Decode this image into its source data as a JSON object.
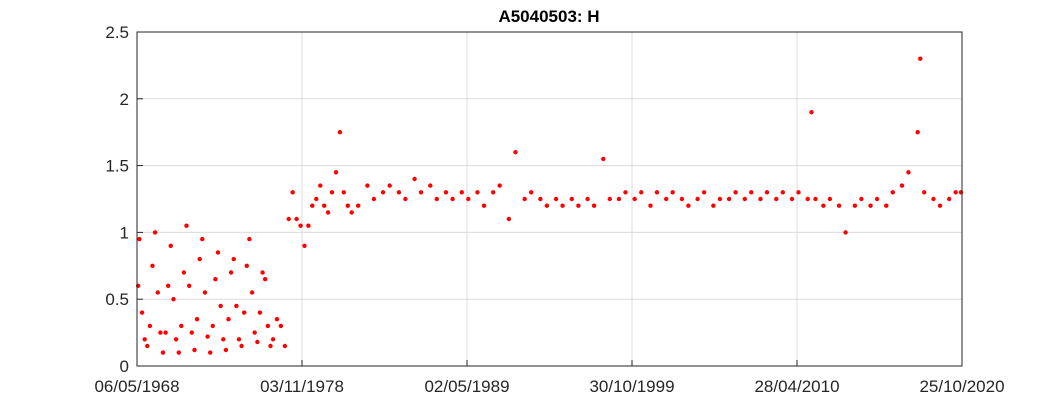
{
  "chart_data": {
    "type": "scatter",
    "title": "A5040503: H",
    "xlabel": "",
    "ylabel": "",
    "xlim": [
      "1968-05-06",
      "2020-10-25"
    ],
    "ylim": [
      0,
      2.5
    ],
    "x_ticks": [
      "06/05/1968",
      "03/11/1978",
      "02/05/1989",
      "30/10/1999",
      "28/04/2010",
      "25/10/2020"
    ],
    "y_ticks": [
      "0",
      "0.5",
      "1",
      "1.5",
      "2",
      "2.5"
    ],
    "grid": true,
    "marker_color": "#ff0000",
    "series": [
      {
        "values": [
          [
            "1968-06-01",
            0.6
          ],
          [
            "1968-07-01",
            0.95
          ],
          [
            "1968-09-01",
            0.4
          ],
          [
            "1968-11-01",
            0.2
          ],
          [
            "1969-01-01",
            0.15
          ],
          [
            "1969-03-01",
            0.3
          ],
          [
            "1969-05-01",
            0.75
          ],
          [
            "1969-07-01",
            1.0
          ],
          [
            "1969-09-01",
            0.55
          ],
          [
            "1969-11-01",
            0.25
          ],
          [
            "1970-01-01",
            0.1
          ],
          [
            "1970-03-01",
            0.25
          ],
          [
            "1970-05-01",
            0.6
          ],
          [
            "1970-07-01",
            0.9
          ],
          [
            "1970-09-01",
            0.5
          ],
          [
            "1970-11-01",
            0.2
          ],
          [
            "1971-01-01",
            0.1
          ],
          [
            "1971-03-01",
            0.3
          ],
          [
            "1971-05-01",
            0.7
          ],
          [
            "1971-07-01",
            1.05
          ],
          [
            "1971-09-01",
            0.6
          ],
          [
            "1971-11-01",
            0.25
          ],
          [
            "1972-01-01",
            0.12
          ],
          [
            "1972-03-01",
            0.35
          ],
          [
            "1972-05-01",
            0.8
          ],
          [
            "1972-07-01",
            0.95
          ],
          [
            "1972-09-01",
            0.55
          ],
          [
            "1972-11-01",
            0.22
          ],
          [
            "1973-01-01",
            0.1
          ],
          [
            "1973-03-01",
            0.3
          ],
          [
            "1973-05-01",
            0.65
          ],
          [
            "1973-07-01",
            0.85
          ],
          [
            "1973-09-01",
            0.45
          ],
          [
            "1973-11-01",
            0.2
          ],
          [
            "1974-01-01",
            0.12
          ],
          [
            "1974-03-01",
            0.35
          ],
          [
            "1974-05-01",
            0.7
          ],
          [
            "1974-07-01",
            0.8
          ],
          [
            "1974-09-01",
            0.45
          ],
          [
            "1974-11-01",
            0.2
          ],
          [
            "1975-01-01",
            0.15
          ],
          [
            "1975-03-01",
            0.4
          ],
          [
            "1975-05-01",
            0.75
          ],
          [
            "1975-07-01",
            0.95
          ],
          [
            "1975-09-01",
            0.55
          ],
          [
            "1975-11-01",
            0.25
          ],
          [
            "1976-01-01",
            0.18
          ],
          [
            "1976-03-01",
            0.4
          ],
          [
            "1976-05-01",
            0.7
          ],
          [
            "1976-07-01",
            0.65
          ],
          [
            "1976-09-01",
            0.3
          ],
          [
            "1976-11-01",
            0.15
          ],
          [
            "1977-01-01",
            0.2
          ],
          [
            "1977-04-01",
            0.35
          ],
          [
            "1977-07-01",
            0.3
          ],
          [
            "1977-10-01",
            0.15
          ],
          [
            "1978-01-01",
            1.1
          ],
          [
            "1978-04-01",
            1.3
          ],
          [
            "1978-07-01",
            1.1
          ],
          [
            "1978-10-01",
            1.05
          ],
          [
            "1979-01-01",
            0.9
          ],
          [
            "1979-04-01",
            1.05
          ],
          [
            "1979-07-01",
            1.2
          ],
          [
            "1979-10-01",
            1.25
          ],
          [
            "1980-01-01",
            1.35
          ],
          [
            "1980-04-01",
            1.2
          ],
          [
            "1980-07-01",
            1.15
          ],
          [
            "1980-10-01",
            1.3
          ],
          [
            "1981-01-01",
            1.45
          ],
          [
            "1981-04-01",
            1.75
          ],
          [
            "1981-07-01",
            1.3
          ],
          [
            "1981-10-01",
            1.2
          ],
          [
            "1982-01-01",
            1.15
          ],
          [
            "1982-06-01",
            1.2
          ],
          [
            "1983-01-01",
            1.35
          ],
          [
            "1983-06-01",
            1.25
          ],
          [
            "1984-01-01",
            1.3
          ],
          [
            "1984-06-01",
            1.35
          ],
          [
            "1985-01-01",
            1.3
          ],
          [
            "1985-06-01",
            1.25
          ],
          [
            "1986-01-01",
            1.4
          ],
          [
            "1986-06-01",
            1.3
          ],
          [
            "1987-01-01",
            1.35
          ],
          [
            "1987-06-01",
            1.25
          ],
          [
            "1988-01-01",
            1.3
          ],
          [
            "1988-06-01",
            1.25
          ],
          [
            "1989-01-01",
            1.3
          ],
          [
            "1989-06-01",
            1.25
          ],
          [
            "1990-01-01",
            1.3
          ],
          [
            "1990-06-01",
            1.2
          ],
          [
            "1991-01-01",
            1.3
          ],
          [
            "1991-06-01",
            1.35
          ],
          [
            "1992-01-01",
            1.1
          ],
          [
            "1992-06-01",
            1.6
          ],
          [
            "1993-01-01",
            1.25
          ],
          [
            "1993-06-01",
            1.3
          ],
          [
            "1994-01-01",
            1.25
          ],
          [
            "1994-06-01",
            1.2
          ],
          [
            "1995-01-01",
            1.25
          ],
          [
            "1995-06-01",
            1.2
          ],
          [
            "1996-01-01",
            1.25
          ],
          [
            "1996-06-01",
            1.2
          ],
          [
            "1997-01-01",
            1.25
          ],
          [
            "1997-06-01",
            1.2
          ],
          [
            "1998-01-01",
            1.55
          ],
          [
            "1998-06-01",
            1.25
          ],
          [
            "1999-01-01",
            1.25
          ],
          [
            "1999-06-01",
            1.3
          ],
          [
            "2000-01-01",
            1.25
          ],
          [
            "2000-06-01",
            1.3
          ],
          [
            "2001-01-01",
            1.2
          ],
          [
            "2001-06-01",
            1.3
          ],
          [
            "2002-01-01",
            1.25
          ],
          [
            "2002-06-01",
            1.3
          ],
          [
            "2003-01-01",
            1.25
          ],
          [
            "2003-06-01",
            1.2
          ],
          [
            "2004-01-01",
            1.25
          ],
          [
            "2004-06-01",
            1.3
          ],
          [
            "2005-01-01",
            1.2
          ],
          [
            "2005-06-01",
            1.25
          ],
          [
            "2006-01-01",
            1.25
          ],
          [
            "2006-06-01",
            1.3
          ],
          [
            "2007-01-01",
            1.25
          ],
          [
            "2007-06-01",
            1.3
          ],
          [
            "2008-01-01",
            1.25
          ],
          [
            "2008-06-01",
            1.3
          ],
          [
            "2009-01-01",
            1.25
          ],
          [
            "2009-06-01",
            1.3
          ],
          [
            "2010-01-01",
            1.25
          ],
          [
            "2010-06-01",
            1.3
          ],
          [
            "2011-01-01",
            1.25
          ],
          [
            "2011-04-01",
            1.9
          ],
          [
            "2011-07-01",
            1.25
          ],
          [
            "2012-01-01",
            1.2
          ],
          [
            "2012-06-01",
            1.25
          ],
          [
            "2013-01-01",
            1.2
          ],
          [
            "2013-06-01",
            1.0
          ],
          [
            "2014-01-01",
            1.2
          ],
          [
            "2014-06-01",
            1.25
          ],
          [
            "2015-01-01",
            1.2
          ],
          [
            "2015-06-01",
            1.25
          ],
          [
            "2016-01-01",
            1.2
          ],
          [
            "2016-06-01",
            1.3
          ],
          [
            "2017-01-01",
            1.35
          ],
          [
            "2017-06-01",
            1.45
          ],
          [
            "2018-01-01",
            1.75
          ],
          [
            "2018-03-01",
            2.3
          ],
          [
            "2018-06-01",
            1.3
          ],
          [
            "2019-01-01",
            1.25
          ],
          [
            "2019-06-01",
            1.2
          ],
          [
            "2020-01-01",
            1.25
          ],
          [
            "2020-06-01",
            1.3
          ],
          [
            "2020-10-01",
            1.3
          ]
        ]
      }
    ]
  }
}
